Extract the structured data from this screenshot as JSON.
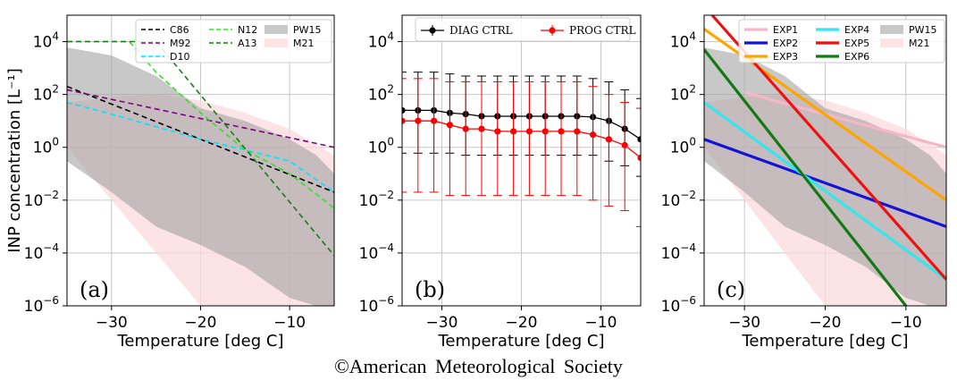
{
  "copyright": "©American Meteorological Society",
  "common": {
    "xlabel": "Temperature [deg C]",
    "xticks": [
      -30,
      -20,
      -10
    ],
    "yticks_exp": [
      -6,
      -4,
      -2,
      0,
      2,
      4
    ]
  },
  "chart_data": [
    {
      "panel": "(a)",
      "type": "line",
      "ylabel": "INP concentration [L⁻¹]",
      "xlabel": "Temperature [deg C]",
      "xlim": [
        -35,
        -5
      ],
      "ylim": [
        1e-06,
        100000.0
      ],
      "yscale": "log",
      "grid": true,
      "legend_placement": "top-right",
      "series": [
        {
          "name": "C86",
          "color": "#000000",
          "style": "dashed",
          "x": [
            -35,
            -5
          ],
          "y": [
            200,
            0.02
          ]
        },
        {
          "name": "M92",
          "color": "#800080",
          "style": "dashed",
          "x": [
            -35,
            -5
          ],
          "y": [
            150,
            1.0
          ]
        },
        {
          "name": "D10",
          "color": "#00e5ff",
          "style": "dashed",
          "x": [
            -35,
            -30,
            -25,
            -20,
            -15,
            -10,
            -5
          ],
          "y": [
            50,
            18,
            6,
            2,
            0.8,
            0.3,
            0.02
          ]
        },
        {
          "name": "N12",
          "color": "#33e02a",
          "style": "dashed",
          "x": [
            -35,
            -28,
            -25,
            -20,
            -15,
            -10,
            -5
          ],
          "y": [
            10000,
            10000,
            700,
            20,
            0.8,
            0.1,
            0.005
          ]
        },
        {
          "name": "A13",
          "color": "#1a7a1a",
          "style": "dashed",
          "x": [
            -35,
            -25,
            -5
          ],
          "y": [
            10000,
            10000,
            8e-05
          ]
        }
      ],
      "bands": [
        {
          "name": "PW15",
          "color": "#9a9a9a",
          "x": [
            -35,
            -30,
            -25,
            -20,
            -15,
            -10,
            -7,
            -5
          ],
          "upper": [
            6000,
            3000,
            500,
            30,
            10,
            2,
            0.5,
            0.1
          ],
          "lower": [
            0.3,
            0.02,
            0.001,
            0.0002,
            3e-05,
            2e-06,
            1e-06,
            1e-06
          ]
        },
        {
          "name": "M21",
          "color": "#fadadd",
          "x": [
            -35,
            -30,
            -25,
            -20,
            -15,
            -10,
            -5
          ],
          "upper": [
            50,
            80,
            100,
            60,
            20,
            5,
            0.5
          ],
          "lower": [
            1,
            0.01,
            0.0001,
            1e-06,
            1e-06,
            1e-06,
            1e-06
          ]
        }
      ]
    },
    {
      "panel": "(b)",
      "type": "line",
      "xlabel": "Temperature [deg C]",
      "xlim": [
        -35,
        -5
      ],
      "ylim": [
        1e-06,
        100000.0
      ],
      "yscale": "log",
      "grid": true,
      "legend_placement": "top-center",
      "series": [
        {
          "name": "DIAG CTRL",
          "color": "#000000",
          "marker": "circle",
          "x": [
            -35,
            -33,
            -31,
            -29,
            -27,
            -25,
            -23,
            -21,
            -19,
            -17,
            -15,
            -13,
            -11,
            -9,
            -7,
            -5
          ],
          "y": [
            25,
            25,
            25,
            20,
            18,
            15,
            15,
            15,
            15,
            15,
            15,
            15,
            14,
            10,
            5,
            2
          ],
          "err_low": [
            0.6,
            0.6,
            0.6,
            0.6,
            0.5,
            0.5,
            0.5,
            0.5,
            0.5,
            0.5,
            0.5,
            0.5,
            0.5,
            0.3,
            0.2,
            0.08
          ],
          "err_high": [
            700,
            700,
            700,
            600,
            500,
            500,
            500,
            500,
            500,
            500,
            500,
            500,
            400,
            300,
            150,
            70
          ]
        },
        {
          "name": "PROG CTRL",
          "color": "#ff0000",
          "marker": "circle",
          "x": [
            -35,
            -33,
            -31,
            -29,
            -27,
            -25,
            -23,
            -21,
            -19,
            -17,
            -15,
            -13,
            -11,
            -9,
            -7,
            -5
          ],
          "y": [
            10,
            10,
            10,
            7,
            5,
            5,
            4,
            4,
            4,
            4,
            4,
            4,
            3,
            2,
            1.2,
            0.4
          ],
          "err_low": [
            0.02,
            0.02,
            0.02,
            0.015,
            0.015,
            0.015,
            0.015,
            0.015,
            0.015,
            0.015,
            0.015,
            0.015,
            0.01,
            0.006,
            0.004,
            0.001
          ],
          "err_high": [
            400,
            400,
            400,
            300,
            300,
            300,
            300,
            300,
            300,
            300,
            300,
            300,
            200,
            100,
            50,
            30
          ]
        }
      ]
    },
    {
      "panel": "(c)",
      "type": "line",
      "xlabel": "Temperature [deg C]",
      "xlim": [
        -35,
        -5
      ],
      "ylim": [
        1e-06,
        100000.0
      ],
      "yscale": "log",
      "grid": true,
      "legend_placement": "top-right",
      "series": [
        {
          "name": "EXP1",
          "color": "#f7b6c8",
          "x": [
            -30,
            -5
          ],
          "y": [
            120,
            1
          ]
        },
        {
          "name": "EXP2",
          "color": "#1414d6",
          "x": [
            -35,
            -5
          ],
          "y": [
            2,
            0.001
          ]
        },
        {
          "name": "EXP3",
          "color": "#ffa500",
          "x": [
            -35,
            -5
          ],
          "y": [
            30000,
            0.01
          ]
        },
        {
          "name": "EXP4",
          "color": "#33e6f0",
          "x": [
            -35,
            -5
          ],
          "y": [
            50,
            1e-05
          ]
        },
        {
          "name": "EXP5",
          "color": "#ee1111",
          "x": [
            -34,
            -5
          ],
          "y": [
            100000,
            1e-05
          ]
        },
        {
          "name": "EXP6",
          "color": "#137a13",
          "x": [
            -35,
            -10
          ],
          "y": [
            5000,
            1e-06
          ]
        }
      ],
      "bands": [
        {
          "name": "PW15",
          "color": "#9a9a9a",
          "x": [
            -35,
            -30,
            -25,
            -20,
            -15,
            -10,
            -7,
            -5
          ],
          "upper": [
            6000,
            3000,
            500,
            30,
            10,
            2,
            0.5,
            0.1
          ],
          "lower": [
            0.3,
            0.02,
            0.001,
            0.0002,
            3e-05,
            2e-06,
            1e-06,
            1e-06
          ]
        },
        {
          "name": "M21",
          "color": "#fadadd",
          "x": [
            -35,
            -30,
            -25,
            -20,
            -15,
            -10,
            -5
          ],
          "upper": [
            50,
            80,
            100,
            60,
            20,
            5,
            0.5
          ],
          "lower": [
            1,
            0.01,
            0.0001,
            1e-06,
            1e-06,
            1e-06,
            1e-06
          ]
        }
      ]
    }
  ]
}
